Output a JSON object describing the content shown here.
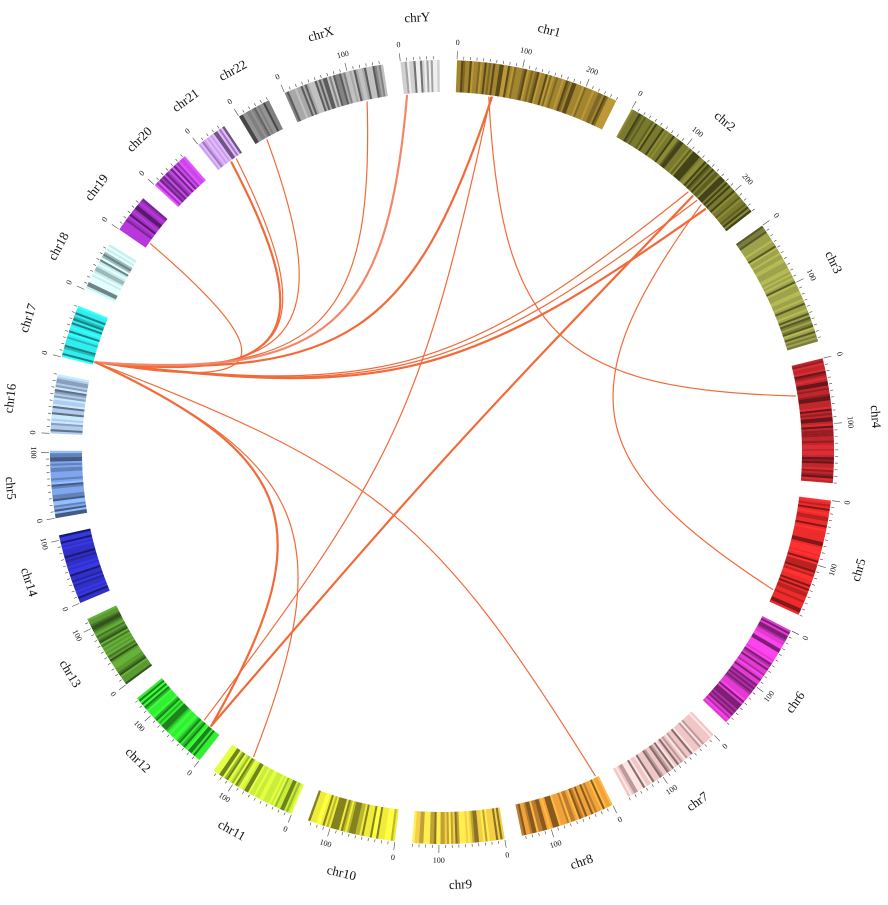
{
  "diagram": {
    "type": "circos",
    "chromosomes": [
      {
        "id": "chr1",
        "label": "chr1",
        "color": "#a38530",
        "length": 250,
        "tick_labels": [
          "0",
          "100",
          "200"
        ],
        "tick_values": [
          0,
          100,
          200
        ]
      },
      {
        "id": "chr2",
        "label": "chr2",
        "color": "#7a7a2e",
        "length": 240,
        "tick_labels": [
          "0",
          "100",
          "200"
        ],
        "tick_values": [
          0,
          100,
          200
        ]
      },
      {
        "id": "chr3",
        "label": "chr3",
        "color": "#9ea24a",
        "length": 195,
        "tick_labels": [
          "0",
          "100"
        ],
        "tick_values": [
          0,
          100
        ]
      },
      {
        "id": "chr4",
        "label": "chr4",
        "color": "#c0272d",
        "length": 190,
        "tick_labels": [
          "0",
          "100"
        ],
        "tick_values": [
          0,
          100
        ]
      },
      {
        "id": "chr5",
        "label": "chr5",
        "color": "#ee2b2b",
        "length": 180,
        "tick_labels": [
          "0",
          "100"
        ],
        "tick_values": [
          0,
          100
        ]
      },
      {
        "id": "chr6",
        "label": "chr6",
        "color": "#e23ad2",
        "length": 170,
        "tick_labels": [
          "0",
          "100"
        ],
        "tick_values": [
          0,
          100
        ]
      },
      {
        "id": "chr7",
        "label": "chr7",
        "color": "#f0c6c6",
        "length": 160,
        "tick_labels": [
          "0",
          "100"
        ],
        "tick_values": [
          0,
          100
        ]
      },
      {
        "id": "chr8",
        "label": "chr8",
        "color": "#f2a23a",
        "length": 145,
        "tick_labels": [
          "0",
          "100"
        ],
        "tick_values": [
          0,
          100
        ]
      },
      {
        "id": "chr9",
        "label": "chr9",
        "color": "#f5cf45",
        "length": 140,
        "tick_labels": [
          "0",
          "100"
        ],
        "tick_values": [
          0,
          100
        ]
      },
      {
        "id": "chr10",
        "label": "chr10",
        "color": "#f0ec3a",
        "length": 135,
        "tick_labels": [
          "0",
          "100"
        ],
        "tick_values": [
          0,
          100
        ]
      },
      {
        "id": "chr11",
        "label": "chr11",
        "color": "#c8ee3a",
        "length": 135,
        "tick_labels": [
          "0",
          "100"
        ],
        "tick_values": [
          0,
          100
        ]
      },
      {
        "id": "chr12",
        "label": "chr12",
        "color": "#33ee33",
        "length": 133,
        "tick_labels": [
          "0",
          "100"
        ],
        "tick_values": [
          0,
          100
        ]
      },
      {
        "id": "chr13",
        "label": "chr13",
        "color": "#5a9a32",
        "length": 115,
        "tick_labels": [
          "0",
          "100"
        ],
        "tick_values": [
          0,
          100
        ]
      },
      {
        "id": "chr14",
        "label": "chr14",
        "color": "#3030c8",
        "length": 107,
        "tick_labels": [
          "0",
          "100"
        ],
        "tick_values": [
          0,
          100
        ]
      },
      {
        "id": "chr5b",
        "label": "chr5",
        "color": "#7fa6ee",
        "length": 102,
        "tick_labels": [
          "0",
          "100"
        ],
        "tick_values": [
          0,
          100
        ]
      },
      {
        "id": "chr16",
        "label": "chr16",
        "color": "#b0ccee",
        "length": 90,
        "tick_labels": [
          "0"
        ],
        "tick_values": [
          0
        ]
      },
      {
        "id": "chr17",
        "label": "chr17",
        "color": "#30eeee",
        "length": 81,
        "tick_labels": [
          "0"
        ],
        "tick_values": [
          0
        ]
      },
      {
        "id": "chr18",
        "label": "chr18",
        "color": "#c8eeee",
        "length": 78,
        "tick_labels": [
          "0"
        ],
        "tick_values": [
          0
        ]
      },
      {
        "id": "chr19",
        "label": "chr19",
        "color": "#a030c0",
        "length": 59,
        "tick_labels": [
          "0"
        ],
        "tick_values": [
          0
        ]
      },
      {
        "id": "chr20",
        "label": "chr20",
        "color": "#c848ee",
        "length": 63,
        "tick_labels": [
          "0"
        ],
        "tick_values": [
          0
        ]
      },
      {
        "id": "chr21",
        "label": "chr21",
        "color": "#c8a0ee",
        "length": 48,
        "tick_labels": [
          "0"
        ],
        "tick_values": [
          0
        ]
      },
      {
        "id": "chr22",
        "label": "chr22",
        "color": "#808080",
        "length": 51,
        "tick_labels": [
          "0"
        ],
        "tick_values": [
          0
        ]
      },
      {
        "id": "chrX",
        "label": "chrX",
        "color": "#a8a8a8",
        "length": 155,
        "tick_labels": [
          "0",
          "100"
        ],
        "tick_values": [
          0,
          100
        ]
      },
      {
        "id": "chrY",
        "label": "chrY",
        "color": "#d0d0d0",
        "length": 59,
        "tick_labels": [
          "0"
        ],
        "tick_values": [
          0
        ]
      }
    ],
    "links": [
      {
        "source": [
          "chr17",
          5
        ],
        "target": [
          "chr1",
          60
        ],
        "color": "#f26a3a"
      },
      {
        "source": [
          "chr17",
          5
        ],
        "target": [
          "chr2",
          150
        ],
        "color": "#f26a3a"
      },
      {
        "source": [
          "chr17",
          5
        ],
        "target": [
          "chr2",
          170
        ],
        "color": "#f26a3a"
      },
      {
        "source": [
          "chr17",
          5
        ],
        "target": [
          "chr2",
          190
        ],
        "color": "#f26a3a"
      },
      {
        "source": [
          "chr17",
          5
        ],
        "target": [
          "chrX",
          120
        ],
        "color": "#f26a3a"
      },
      {
        "source": [
          "chr17",
          5
        ],
        "target": [
          "chr22",
          20
        ],
        "color": "#f26a3a"
      },
      {
        "source": [
          "chr17",
          5
        ],
        "target": [
          "chr21",
          25
        ],
        "color": "#f26a3a"
      },
      {
        "source": [
          "chr17",
          5
        ],
        "target": [
          "chr21",
          35
        ],
        "color": "#f26a3a"
      },
      {
        "source": [
          "chr17",
          5
        ],
        "target": [
          "chr19",
          10
        ],
        "color": "#f26a3a"
      },
      {
        "source": [
          "chr17",
          5
        ],
        "target": [
          "chrY",
          5
        ],
        "color": "#f4876a"
      },
      {
        "source": [
          "chr17",
          5
        ],
        "target": [
          "chr8",
          5
        ],
        "color": "#f26a3a"
      },
      {
        "source": [
          "chr17",
          5
        ],
        "target": [
          "chr11",
          95
        ],
        "color": "#f26a3a"
      },
      {
        "source": [
          "chr17",
          5
        ],
        "target": [
          "chr12",
          20
        ],
        "color": "#f26a3a"
      },
      {
        "source": [
          "chr1",
          55
        ],
        "target": [
          "chr4",
          50
        ],
        "color": "#f26a3a"
      },
      {
        "source": [
          "chr2",
          180
        ],
        "target": [
          "chr5",
          160
        ],
        "color": "#f26a3a"
      },
      {
        "source": [
          "chr2",
          160
        ],
        "target": [
          "chr12",
          20
        ],
        "color": "#f26a3a"
      },
      {
        "source": [
          "chr1",
          58
        ],
        "target": [
          "chr12",
          35
        ],
        "color": "#f26a3a"
      }
    ]
  }
}
